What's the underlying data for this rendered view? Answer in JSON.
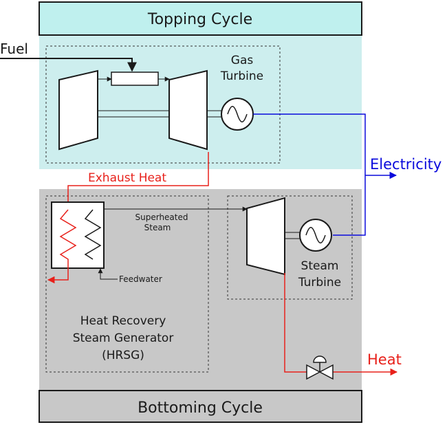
{
  "labels": {
    "topping_cycle": "Topping Cycle",
    "bottoming_cycle": "Bottoming Cycle",
    "fuel": "Fuel",
    "gas_turbine_line1": "Gas",
    "gas_turbine_line2": "Turbine",
    "electricity": "Electricity",
    "exhaust_heat": "Exhaust Heat",
    "superheated_line1": "Superheated",
    "superheated_line2": "Steam",
    "feedwater": "Feedwater",
    "hrsg_line1": "Heat Recovery",
    "hrsg_line2": "Steam Generator",
    "hrsg_line3": "(HRSG)",
    "steam_turbine_line1": "Steam",
    "steam_turbine_line2": "Turbine",
    "heat": "Heat"
  },
  "colors": {
    "topping_fill": "#cdeeee",
    "topping_band": "#bff0ee",
    "bottoming_fill": "#c8c8c8",
    "electric_blue": "#0a0adc",
    "heat_red": "#e8201a",
    "line": "#1a1a1a"
  }
}
